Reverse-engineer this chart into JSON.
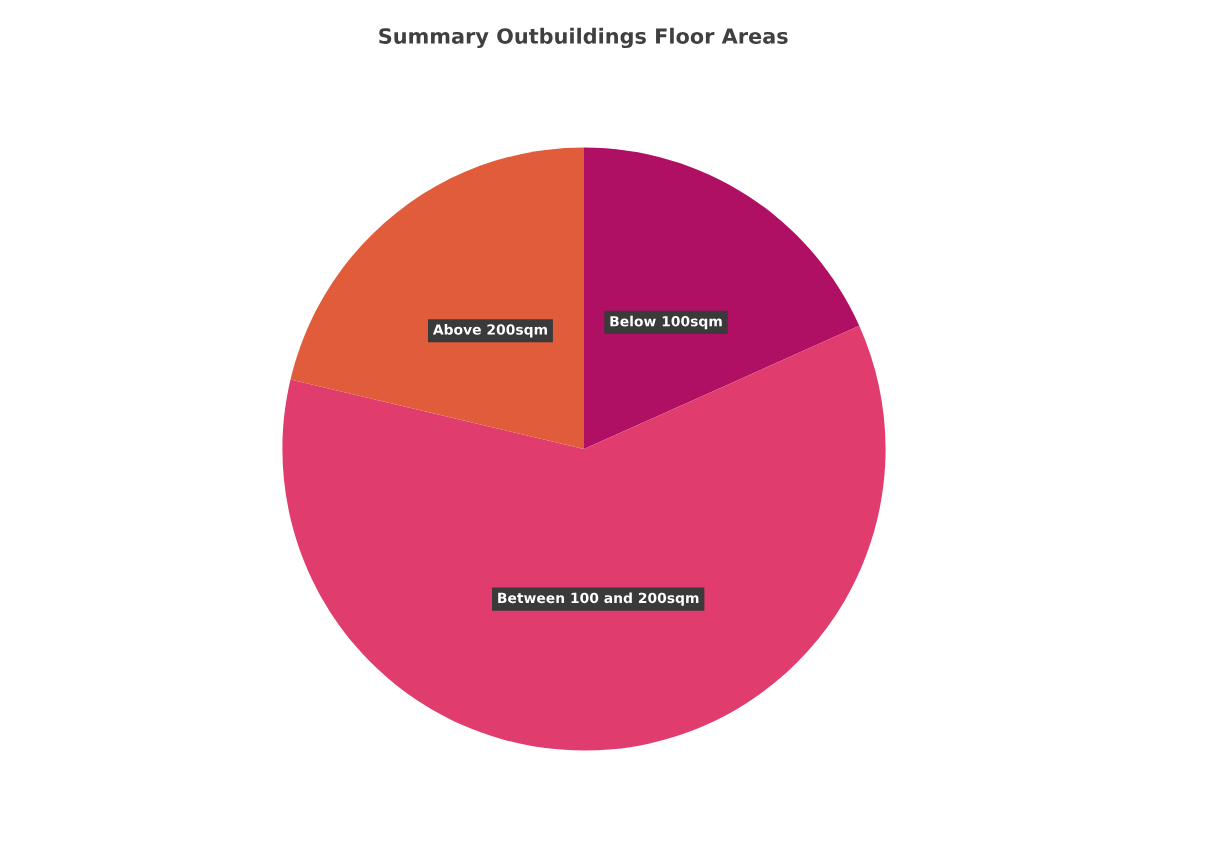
{
  "chart_data": {
    "type": "pie",
    "title": "Summary Outbuildings Floor Areas",
    "categories": [
      "Below 100sqm",
      "Between 100 and 200sqm",
      "Above 200sqm"
    ],
    "values": [
      18.3,
      60.4,
      21.3
    ],
    "colors": [
      "#b01064",
      "#e03c6e",
      "#e05c3a"
    ],
    "legend": false
  }
}
